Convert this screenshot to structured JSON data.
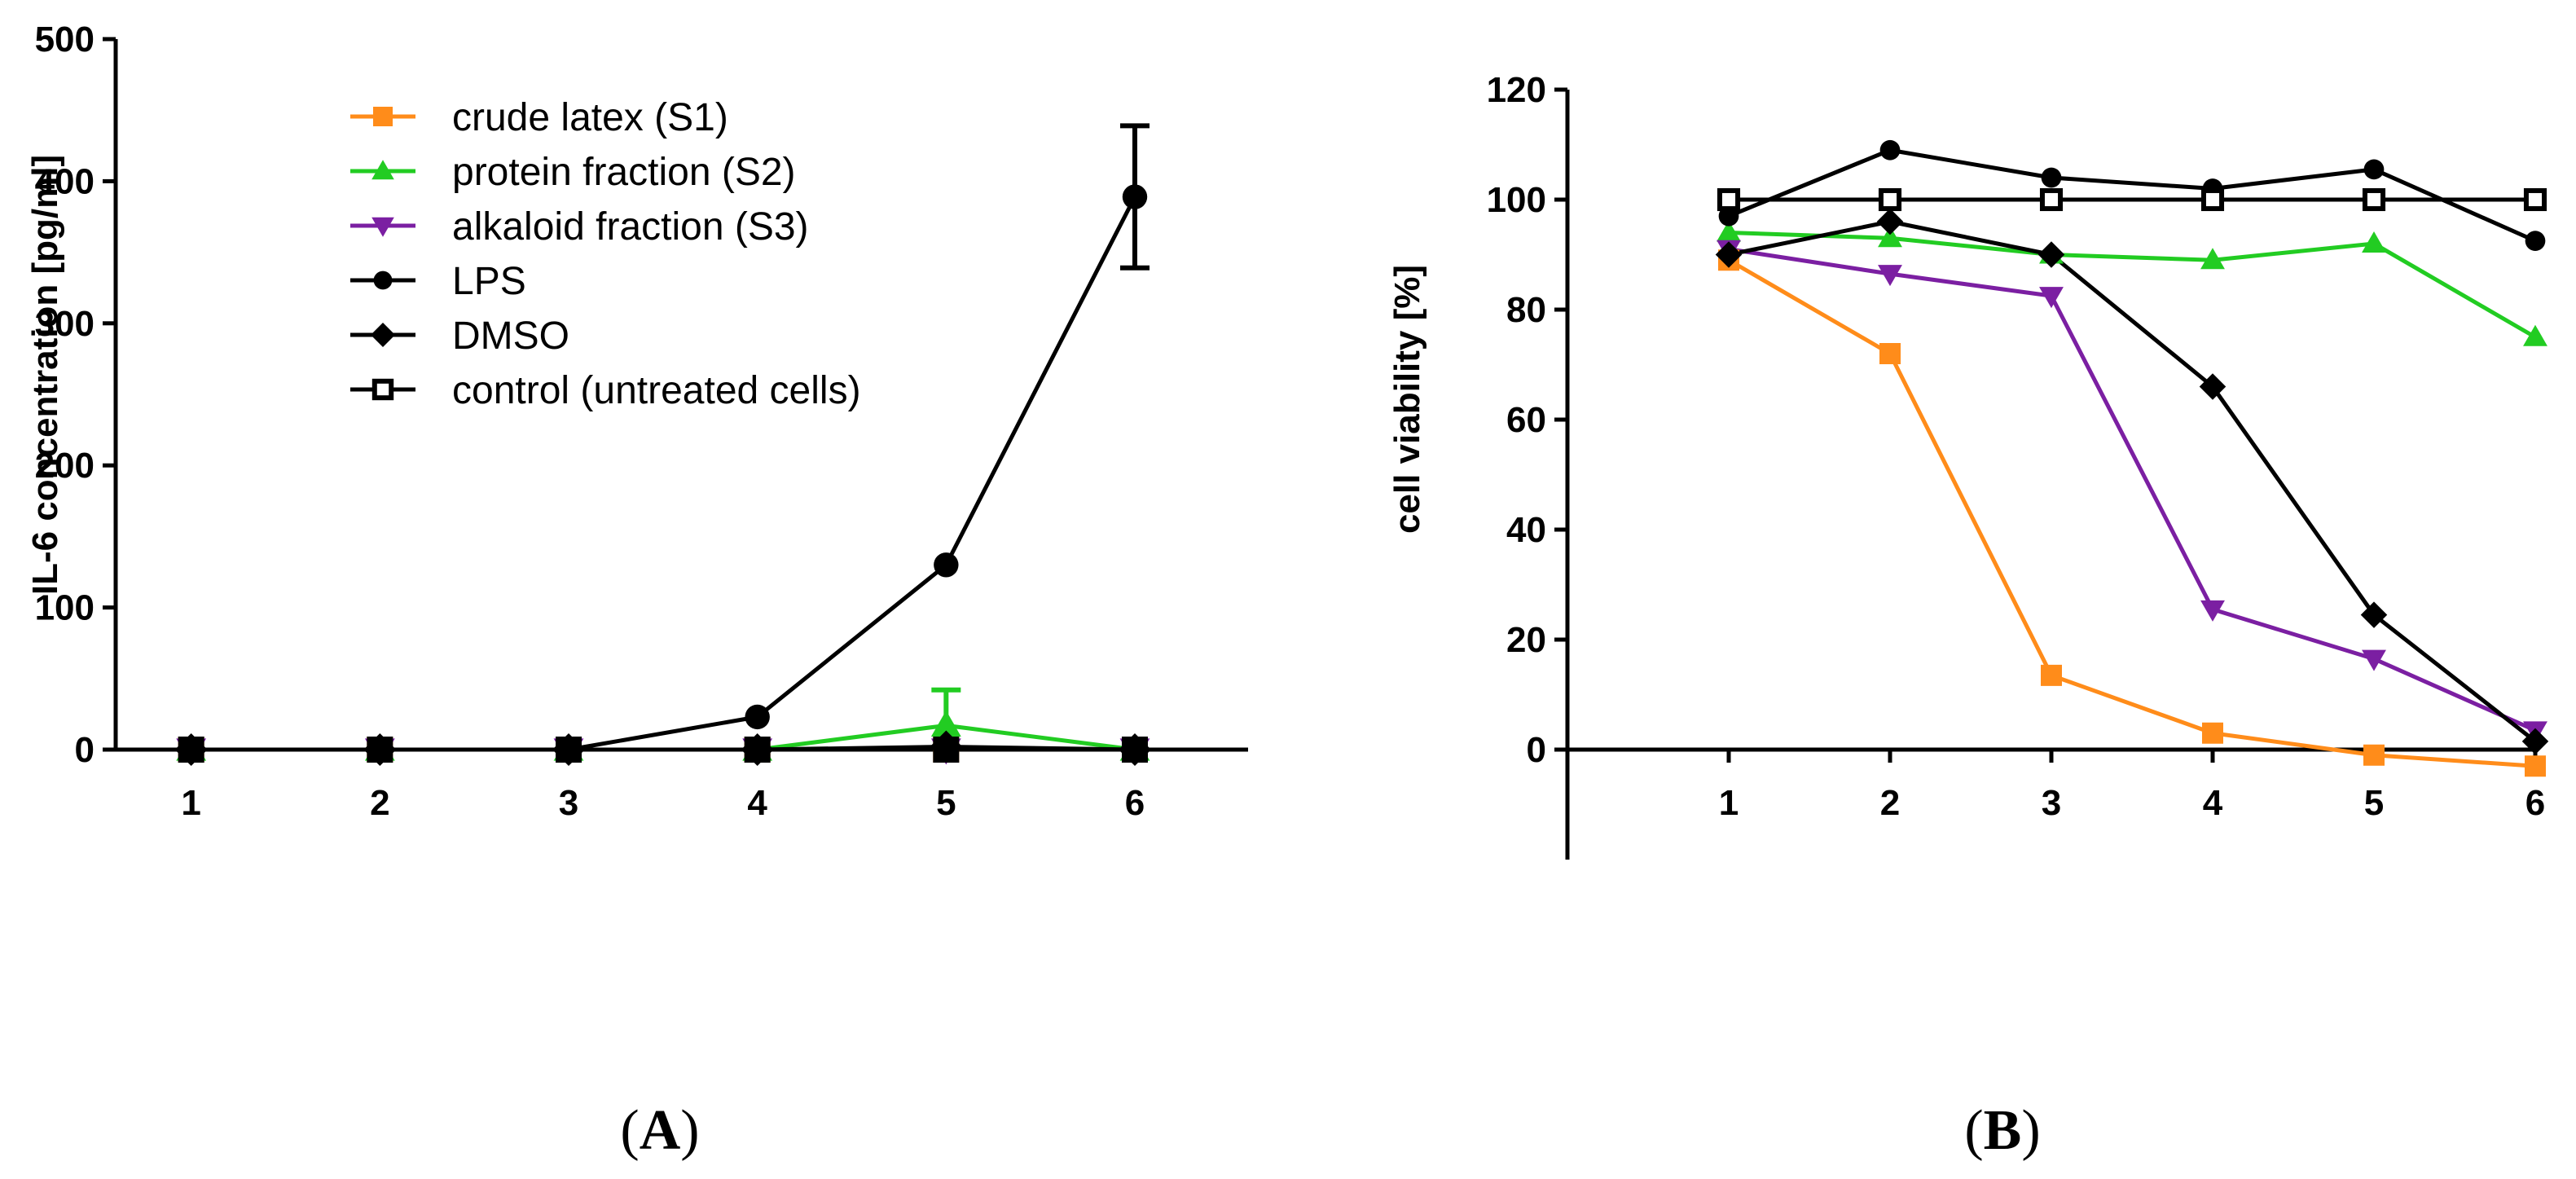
{
  "chart_data": [
    {
      "type": "line",
      "panel": "A",
      "panel_label": "(A)",
      "panel_letter": "A",
      "ylabel": "IL-6 concentration [pg/ml]",
      "xlabel": "",
      "categories": [
        "1",
        "2",
        "3",
        "4",
        "5",
        "6"
      ],
      "x": [
        1,
        2,
        3,
        4,
        5,
        6
      ],
      "xlim": [
        0.6,
        6.6
      ],
      "ylim": [
        0,
        500
      ],
      "yticks": [
        0,
        100,
        200,
        300,
        400,
        500
      ],
      "legend_position": "top-left",
      "series": [
        {
          "name": "crude latex (S1)",
          "key": "s1",
          "color": "#ff8c1a",
          "marker": "square",
          "values": [
            0,
            0,
            0,
            0,
            0,
            0
          ]
        },
        {
          "name": "protein fraction (S2)",
          "key": "s2",
          "color": "#22cc22",
          "marker": "triangle-up",
          "values": [
            0,
            0,
            0,
            0,
            17,
            0
          ],
          "error_up": [
            0,
            0,
            0,
            0,
            25,
            0
          ]
        },
        {
          "name": "alkaloid fraction (S3)",
          "key": "s3",
          "color": "#7b1fa2",
          "marker": "triangle-down",
          "values": [
            0,
            0,
            0,
            0,
            0,
            0
          ]
        },
        {
          "name": "LPS",
          "key": "lps",
          "color": "#000000",
          "marker": "circle",
          "values": [
            0,
            0,
            0,
            23,
            130,
            389
          ],
          "error_up": [
            0,
            0,
            0,
            0,
            0,
            50
          ],
          "error_down": [
            0,
            0,
            0,
            0,
            0,
            50
          ]
        },
        {
          "name": "DMSO",
          "key": "dmso",
          "color": "#000000",
          "marker": "diamond",
          "values": [
            0,
            0,
            0,
            0,
            2,
            0
          ]
        },
        {
          "name": "control (untreated cells)",
          "key": "ctrl",
          "color": "#000000",
          "marker": "square",
          "values": [
            0,
            0,
            0,
            0,
            0,
            0
          ]
        }
      ]
    },
    {
      "type": "line",
      "panel": "B",
      "panel_label": "(B)",
      "panel_letter": "B",
      "ylabel": "cell viability [%]",
      "xlabel": "",
      "categories": [
        "1",
        "2",
        "3",
        "4",
        "5",
        "6"
      ],
      "x": [
        1,
        2,
        3,
        4,
        5,
        6
      ],
      "xlim": [
        0,
        6
      ],
      "ylim": [
        -20,
        120
      ],
      "yticks": [
        0,
        20,
        40,
        60,
        80,
        100,
        120
      ],
      "series": [
        {
          "name": "crude latex (S1)",
          "key": "s1",
          "color": "#ff8c1a",
          "marker": "square",
          "values": [
            89,
            72,
            13.5,
            3,
            -1,
            -3
          ]
        },
        {
          "name": "protein fraction (S2)",
          "key": "s2",
          "color": "#22cc22",
          "marker": "triangle-up",
          "values": [
            94,
            93,
            90,
            89,
            92,
            75
          ]
        },
        {
          "name": "alkaloid fraction (S3)",
          "key": "s3",
          "color": "#7b1fa2",
          "marker": "triangle-down",
          "values": [
            91,
            86.5,
            82.5,
            25.5,
            16.5,
            3.5
          ]
        },
        {
          "name": "LPS",
          "key": "lps",
          "color": "#000000",
          "marker": "circle",
          "values": [
            97,
            109,
            104,
            102,
            105.5,
            92.5
          ]
        },
        {
          "name": "DMSO",
          "key": "dmso",
          "color": "#000000",
          "marker": "diamond",
          "values": [
            90,
            96,
            90,
            66,
            24.5,
            1.5
          ]
        },
        {
          "name": "control (untreated cells)",
          "key": "ctrl",
          "color": "#000000",
          "marker": "square",
          "values": [
            100,
            100,
            100,
            100,
            100,
            100
          ]
        }
      ]
    }
  ]
}
